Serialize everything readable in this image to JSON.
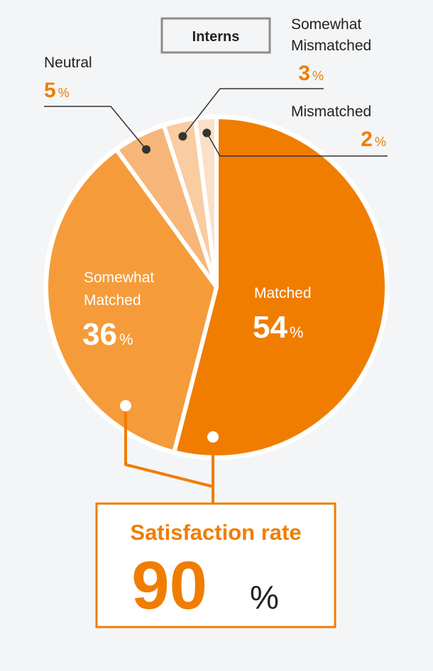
{
  "legend_box": {
    "label": "Interns"
  },
  "chart_data": {
    "type": "pie",
    "title": "Interns",
    "unit": "%",
    "slices": [
      {
        "label": "Matched",
        "label_lines": [
          "Matched"
        ],
        "value": 54,
        "color": "#f07d00",
        "text_color": "#ffffff"
      },
      {
        "label": "Somewhat Matched",
        "label_lines": [
          "Somewhat",
          "Matched"
        ],
        "value": 36,
        "color": "#f59b3a",
        "text_color": "#ffffff"
      },
      {
        "label": "Neutral",
        "label_lines": [
          "Neutral"
        ],
        "value": 5,
        "color": "#f7b679",
        "text_color": "#222222"
      },
      {
        "label": "Somewhat Mismatched",
        "label_lines": [
          "Somewhat",
          "Mismatched"
        ],
        "value": 3,
        "color": "#f9cca1",
        "text_color": "#222222"
      },
      {
        "label": "Mismatched",
        "label_lines": [
          "Mismatched"
        ],
        "value": 2,
        "color": "#fbe0c8",
        "text_color": "#222222"
      }
    ],
    "summary": {
      "label": "Satisfaction rate",
      "value": 90,
      "unit": "%",
      "components": [
        "Matched",
        "Somewhat Matched"
      ]
    }
  },
  "colors": {
    "accent": "#f07d00",
    "background": "#f4f5f7",
    "box_border": "#8c8c8c",
    "text": "#222222"
  }
}
